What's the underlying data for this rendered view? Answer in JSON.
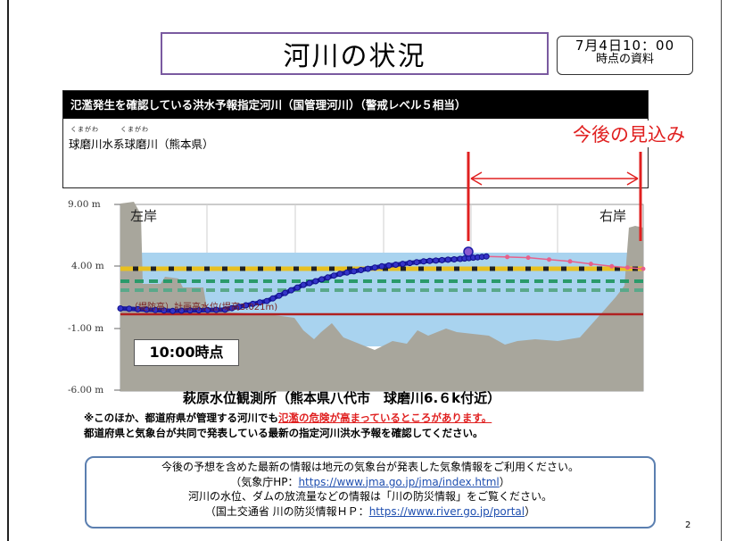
{
  "title": "河川の状況",
  "date_box": {
    "line1": "7月4日10：00",
    "line2": "時点の資料"
  },
  "info_panel": {
    "header": "氾濫発生を確認している洪水予報指定河川（国管理河川）（警戒レベル５相当）",
    "river_ruby": "くまがわ　　　くまがわ",
    "river_name": "球磨川水系球磨川（熊本県）"
  },
  "outlook_label": "今後の見込み",
  "chart": {
    "y_ticks": [
      "9.00 m",
      "4.00 m",
      "-1.00 m",
      "-6.00 m"
    ],
    "left_bank": "左岸",
    "right_bank": "右岸",
    "levee_label": "（堤防高）計画高水位(堤高3.021m)",
    "time_label": "10:00時点",
    "colors": {
      "water": "#a9d3ef",
      "ground": "#a8a69c",
      "observed": "#1a1aa8",
      "forecast": "#e8608a",
      "danger": "#e8c020",
      "warning": "#2a9a6a",
      "levee": "#b02020",
      "outlook": "#e02020"
    }
  },
  "chart_data": {
    "type": "line",
    "title": "",
    "ylim": [
      -6,
      9
    ],
    "series": [
      {
        "name": "",
        "points": [
          [
            0,
            0.6
          ],
          [
            0.1,
            0.4
          ],
          [
            0.2,
            0.5
          ],
          [
            0.28,
            1.2
          ],
          [
            0.35,
            2.5
          ],
          [
            0.42,
            3.4
          ],
          [
            0.5,
            4.0
          ],
          [
            0.58,
            4.4
          ],
          [
            0.65,
            4.6
          ],
          [
            0.7,
            4.8
          ]
        ]
      },
      {
        "name": "",
        "points": [
          [
            0.7,
            4.8
          ],
          [
            0.78,
            4.7
          ],
          [
            0.86,
            4.4
          ],
          [
            0.94,
            4.0
          ],
          [
            1.0,
            3.8
          ]
        ]
      }
    ]
  },
  "caption": "萩原水位観測所（熊本県八代市　球磨川6.６k付近）",
  "note1_prefix": "※このほか、都道府県が管理する河川でも",
  "note1_red": "氾濫の危険が高まっているところがあります。",
  "note2": "都道府県と気象台が共同で発表している最新の指定河川洪水予報を確認してください。",
  "guide": {
    "line1": "今後の予想を含めた最新の情報は地元の気象台が発表した気象情報をご利用ください。",
    "line2_prefix": "（気象庁HP：",
    "line2_link": "https://www.jma.go.jp/jma/index.html",
    "line2_suffix": "）",
    "line3": "河川の水位、ダムの放流量などの情報は「川の防災情報」をご覧ください。",
    "line4_prefix": "（国土交通省 川の防災情報ＨＰ：",
    "line4_link": "https://www.river.go.jp/portal",
    "line4_suffix": "）"
  },
  "page_number": "2"
}
